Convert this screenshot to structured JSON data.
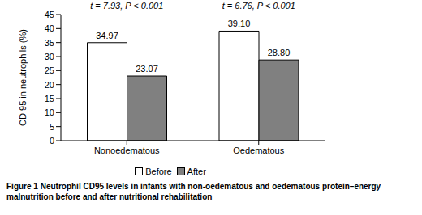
{
  "chart_data": {
    "type": "bar",
    "title": "Figure 1 Neutrophil CD95 levels in infants with non-oedematous and oedematous protein–energy malnutrition before and after nutritional rehabilitation",
    "y_label": "CD 95 in neutrophils (%)",
    "categories": [
      "Nonoedematous",
      "Oedematous"
    ],
    "series": [
      {
        "name": "Before",
        "color": "#ffffff",
        "values": [
          34.97,
          39.1
        ],
        "value_labels": [
          "34.97",
          "39.10"
        ]
      },
      {
        "name": "After",
        "color": "#808080",
        "values": [
          23.07,
          28.8
        ],
        "value_labels": [
          "23.07",
          "28.80"
        ]
      }
    ],
    "annotations": [
      "t = 7.93, P < 0.001",
      "t = 6.76, P < 0.001"
    ],
    "ylim": [
      0,
      45
    ],
    "yticks": [
      0,
      5,
      10,
      15,
      20,
      25,
      30,
      35,
      40,
      45
    ],
    "grid": false,
    "legend": "bottom",
    "data_labels": true
  }
}
